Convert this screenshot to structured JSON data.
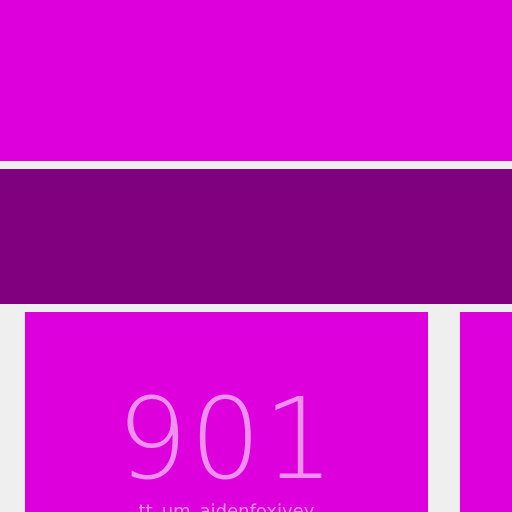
{
  "colors": {
    "background": "#efefef",
    "top_band": "#dd00dd",
    "mid_band": "#800080",
    "tile_main": "#dd00dd",
    "tile_side": "#dd00dd",
    "tile_text": "#f090f0"
  },
  "tiles": {
    "main": {
      "number": "901",
      "caption": "tt_um_aidenfoxivey"
    }
  }
}
